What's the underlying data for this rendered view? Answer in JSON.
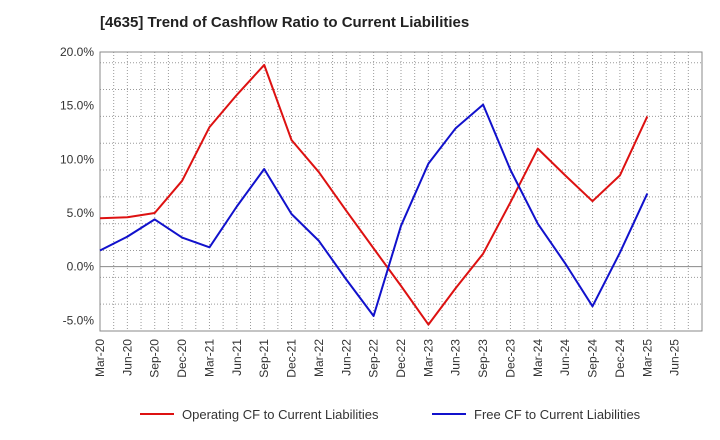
{
  "chart_data": {
    "type": "line",
    "title": "[4635]  Trend of Cashflow Ratio to Current Liabilities",
    "xlabel": "",
    "ylabel": "",
    "x_ticks": [
      "Mar-20",
      "Jun-20",
      "Sep-20",
      "Dec-20",
      "Mar-21",
      "Jun-21",
      "Sep-21",
      "Dec-21",
      "Mar-22",
      "Jun-22",
      "Sep-22",
      "Dec-22",
      "Mar-23",
      "Jun-23",
      "Sep-23",
      "Dec-23",
      "Mar-24",
      "Jun-24",
      "Sep-24",
      "Dec-24",
      "Mar-25",
      "Jun-25"
    ],
    "y_ticks": [
      "20.0%",
      "15.0%",
      "10.0%",
      "5.0%",
      "0.0%",
      "-5.0%"
    ],
    "y_tick_values": [
      20,
      15,
      10,
      5,
      0,
      -5
    ],
    "ylim": [
      -6,
      20
    ],
    "grid": true,
    "legend_position": "bottom",
    "series": [
      {
        "name": "Operating CF to Current Liabilities",
        "color": "#dd1111",
        "x": [
          "Mar-20",
          "Jun-20",
          "Sep-20",
          "Dec-20",
          "Mar-21",
          "Jun-21",
          "Sep-21",
          "Dec-21",
          "Mar-22",
          "Jun-22",
          "Sep-22",
          "Dec-22",
          "Mar-23",
          "Jun-23",
          "Sep-23",
          "Dec-23",
          "Mar-24",
          "Jun-24",
          "Sep-24",
          "Dec-24",
          "Mar-25"
        ],
        "values": [
          4.5,
          4.6,
          5.0,
          8.0,
          13.0,
          16.0,
          18.8,
          11.8,
          8.8,
          5.2,
          1.7,
          -1.8,
          -5.4,
          -2.0,
          1.2,
          6.0,
          11.0,
          8.5,
          6.1,
          8.5,
          14.0
        ]
      },
      {
        "name": "Free CF to Current Liabilities",
        "color": "#1111cc",
        "x": [
          "Mar-20",
          "Jun-20",
          "Sep-20",
          "Dec-20",
          "Mar-21",
          "Jun-21",
          "Sep-21",
          "Dec-21",
          "Mar-22",
          "Jun-22",
          "Sep-22",
          "Dec-22",
          "Mar-23",
          "Jun-23",
          "Sep-23",
          "Dec-23",
          "Mar-24",
          "Jun-24",
          "Sep-24",
          "Dec-24",
          "Mar-25"
        ],
        "values": [
          1.5,
          2.8,
          4.4,
          2.7,
          1.8,
          5.6,
          9.1,
          4.9,
          2.4,
          -1.2,
          -4.6,
          3.8,
          9.6,
          12.9,
          15.1,
          9.0,
          4.0,
          0.3,
          -3.7,
          1.3,
          6.8
        ]
      }
    ]
  }
}
